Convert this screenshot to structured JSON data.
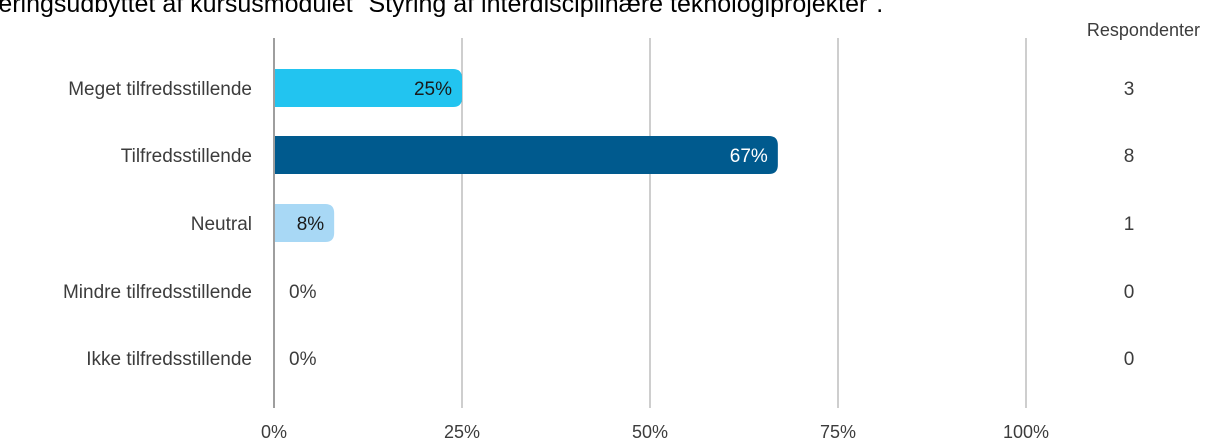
{
  "chart_data": {
    "type": "bar",
    "orientation": "horizontal",
    "title": "æringsudbyttet af kursusmodulet \"Styring af interdisciplinære teknologiprojekter\".",
    "count_header": "Respondenter",
    "categories": [
      "Meget tilfredsstillende",
      "Tilfredsstillende",
      "Neutral",
      "Mindre tilfredsstillende",
      "Ikke tilfredsstillende"
    ],
    "values": [
      25,
      67,
      8,
      0,
      0
    ],
    "value_labels": [
      "25%",
      "67%",
      "8%",
      "0%",
      "0%"
    ],
    "counts": [
      "3",
      "8",
      "1",
      "0",
      "0"
    ],
    "bar_colors": [
      "#22c4f0",
      "#005a8e",
      "#a8d8f5",
      "#a8d8f5",
      "#a8d8f5"
    ],
    "label_colors": [
      "#1a1a1a",
      "#ffffff",
      "#1a1a1a",
      "#3c3c3c",
      "#3c3c3c"
    ],
    "xlim": [
      0,
      100
    ],
    "xticks": [
      0,
      25,
      50,
      75,
      100
    ],
    "xtick_labels": [
      "0%",
      "25%",
      "50%",
      "75%",
      "100%"
    ],
    "grid": true,
    "grid_color": "#9e9e9e",
    "axis_color": "#9e9e9e"
  }
}
